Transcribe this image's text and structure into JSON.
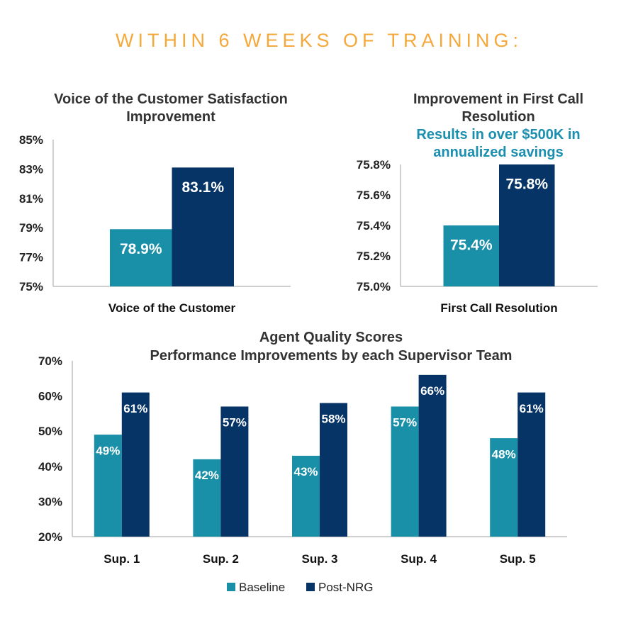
{
  "headline": "WITHIN 6 WEEKS OF TRAINING:",
  "colors": {
    "baseline": "#1a8fa8",
    "post": "#063466",
    "headline": "#f5a83b",
    "annotation": "#1a8fb0"
  },
  "legend": {
    "baseline": "Baseline",
    "post": "Post-NRG",
    "placement": "bottom"
  },
  "chart_data": [
    {
      "id": "voc",
      "type": "bar",
      "title": [
        "Voice of the Customer Satisfaction",
        "Improvement"
      ],
      "categories": [
        "Voice of the Customer"
      ],
      "series": [
        {
          "key": "baseline",
          "values": [
            78.9
          ],
          "labels": [
            "78.9%"
          ]
        },
        {
          "key": "post",
          "values": [
            83.1
          ],
          "labels": [
            "83.1%"
          ]
        }
      ],
      "ylim": [
        75,
        85
      ],
      "yticks": [
        75,
        77,
        79,
        81,
        83,
        85
      ],
      "ytick_labels": [
        "75%",
        "77%",
        "79%",
        "81%",
        "83%",
        "85%"
      ],
      "grid": false
    },
    {
      "id": "fcr",
      "type": "bar",
      "title": [
        "Improvement in First Call",
        "Resolution"
      ],
      "annotation": [
        "Results in over $500K in",
        "annualized savings"
      ],
      "categories": [
        "First Call Resolution"
      ],
      "series": [
        {
          "key": "baseline",
          "values": [
            75.4
          ],
          "labels": [
            "75.4%"
          ]
        },
        {
          "key": "post",
          "values": [
            75.8
          ],
          "labels": [
            "75.8%"
          ]
        }
      ],
      "ylim": [
        75.0,
        75.8
      ],
      "yticks": [
        75.0,
        75.2,
        75.4,
        75.6,
        75.8
      ],
      "ytick_labels": [
        "75.0%",
        "75.2%",
        "75.4%",
        "75.6%",
        "75.8%"
      ],
      "grid": false
    },
    {
      "id": "aqs",
      "type": "bar",
      "title": [
        "Agent Quality Scores",
        "Performance Improvements by each Supervisor Team"
      ],
      "categories": [
        "Sup. 1",
        "Sup. 2",
        "Sup. 3",
        "Sup. 4",
        "Sup. 5"
      ],
      "series": [
        {
          "key": "baseline",
          "values": [
            49,
            42,
            43,
            57,
            48
          ],
          "labels": [
            "49%",
            "42%",
            "43%",
            "57%",
            "48%"
          ]
        },
        {
          "key": "post",
          "values": [
            61,
            57,
            58,
            66,
            61
          ],
          "labels": [
            "61%",
            "57%",
            "58%",
            "66%",
            "61%"
          ]
        }
      ],
      "ylim": [
        20,
        70
      ],
      "yticks": [
        20,
        30,
        40,
        50,
        60,
        70
      ],
      "ytick_labels": [
        "20%",
        "30%",
        "40%",
        "50%",
        "60%",
        "70%"
      ],
      "grid": false
    }
  ]
}
